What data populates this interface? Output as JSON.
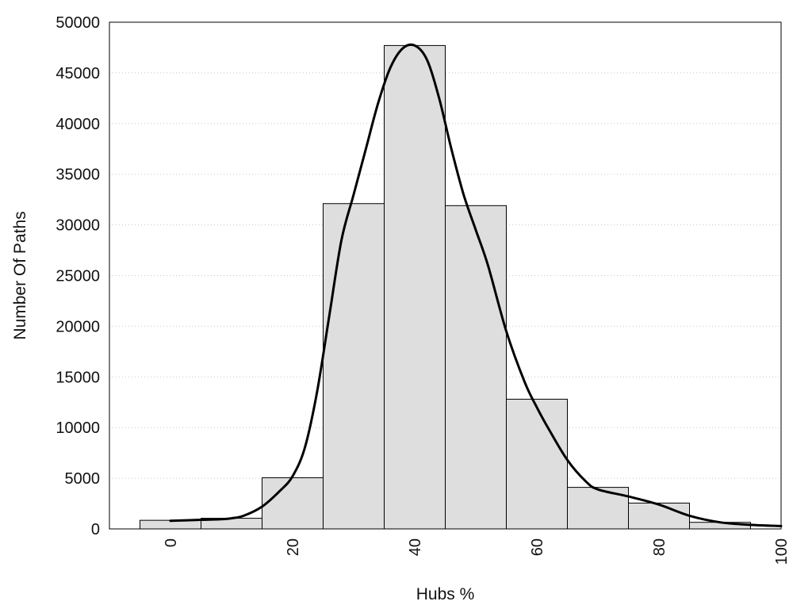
{
  "chart_data": {
    "type": "bar",
    "xlabel": "Hubs %",
    "ylabel": "Number Of Paths",
    "xlim": [
      -10,
      100
    ],
    "ylim": [
      0,
      50000
    ],
    "xticks": [
      0,
      20,
      40,
      60,
      80,
      100
    ],
    "yticks": [
      0,
      5000,
      10000,
      15000,
      20000,
      25000,
      30000,
      35000,
      40000,
      45000,
      50000
    ],
    "grid": "horizontal-dotted",
    "bin_width": 10,
    "bins": [
      {
        "center": 0,
        "value": 850
      },
      {
        "center": 10,
        "value": 1050
      },
      {
        "center": 20,
        "value": 5050
      },
      {
        "center": 30,
        "value": 32100
      },
      {
        "center": 40,
        "value": 47700
      },
      {
        "center": 50,
        "value": 31900
      },
      {
        "center": 60,
        "value": 12800
      },
      {
        "center": 70,
        "value": 4100
      },
      {
        "center": 80,
        "value": 2550
      },
      {
        "center": 90,
        "value": 650
      }
    ],
    "density_curve": {
      "x": [
        0,
        5,
        8,
        10,
        12,
        15,
        18,
        20,
        22,
        24,
        26,
        28,
        30,
        32,
        34,
        36,
        38,
        40,
        42,
        44,
        46,
        48,
        50,
        52,
        55,
        58,
        60,
        62,
        65,
        68,
        70,
        75,
        80,
        85,
        90,
        95,
        100
      ],
      "y": [
        800,
        900,
        950,
        1050,
        1300,
        2200,
        3800,
        5200,
        8000,
        13500,
        21000,
        28500,
        33000,
        37500,
        42000,
        45500,
        47400,
        47700,
        46300,
        42500,
        37500,
        33000,
        29500,
        26000,
        19500,
        14500,
        12000,
        9800,
        6800,
        4700,
        3900,
        3200,
        2400,
        1300,
        650,
        400,
        280
      ]
    }
  }
}
